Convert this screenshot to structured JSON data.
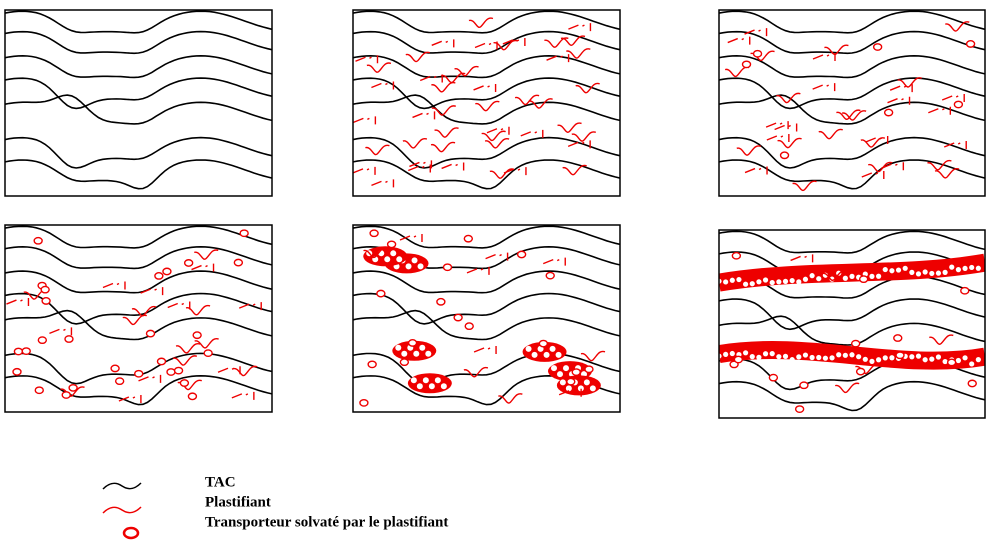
{
  "legend": [
    "TAC",
    "Plastifiant",
    "Transporteur solvaté par le plastifiant"
  ]
}
